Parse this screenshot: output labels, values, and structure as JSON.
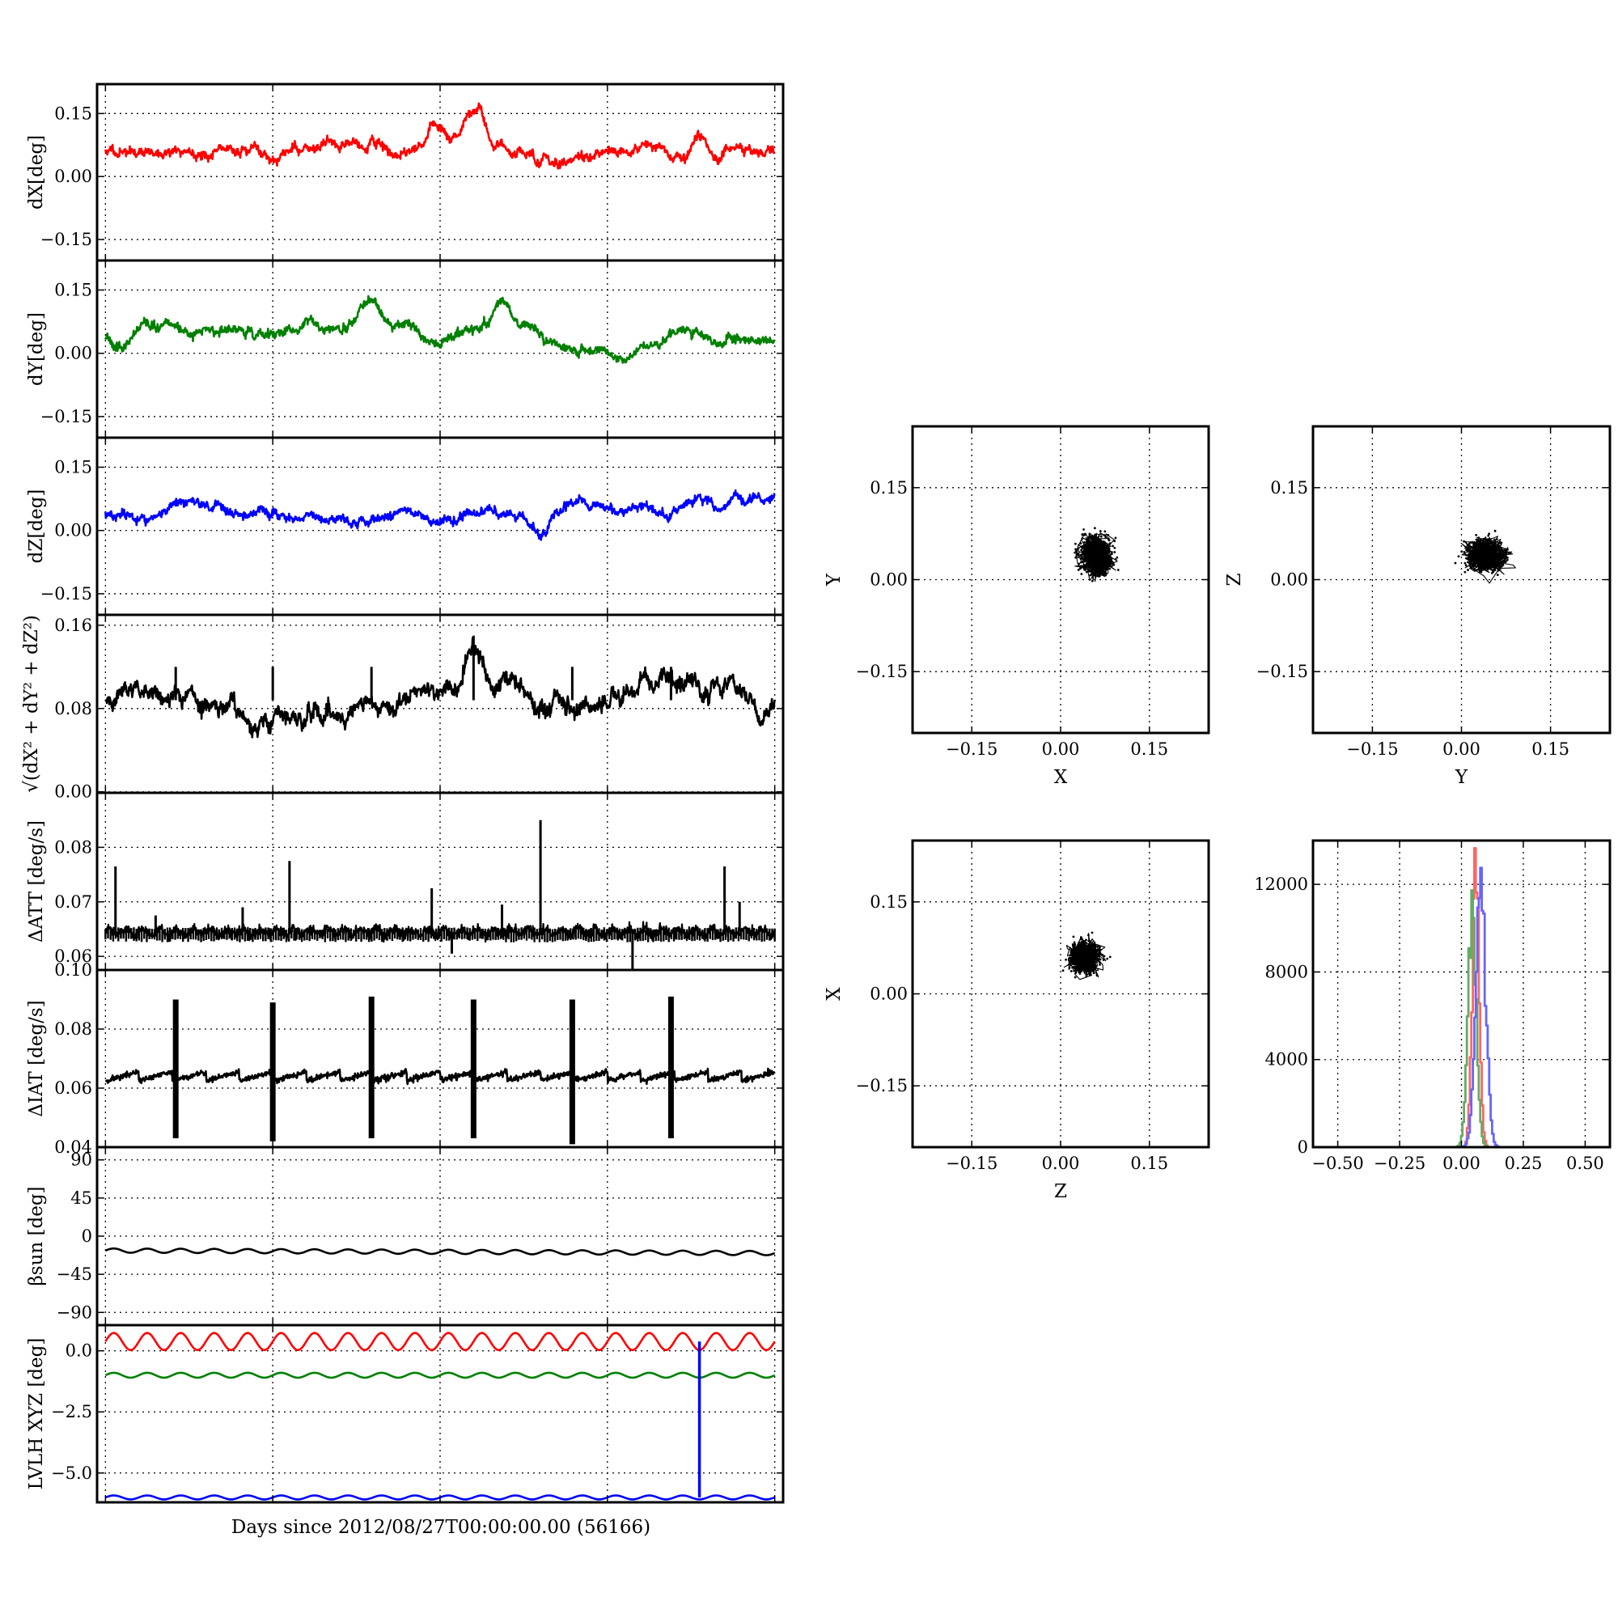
{
  "figure": {
    "shared_xlabel": "Days since 2012/08/27T00:00:00.00 (56166)"
  },
  "chart_data": [
    {
      "id": "dx",
      "type": "line",
      "ylabel": "dX[deg]",
      "ylim": [
        -0.2,
        0.22
      ],
      "yticks": [
        -0.15,
        0.0,
        0.15
      ],
      "ytick_labels": [
        "−0.15",
        "0.00",
        "0.15"
      ],
      "xlim": [
        -0.05,
        4.05
      ],
      "xticks": [
        0,
        1,
        2,
        3,
        4
      ],
      "grid": true,
      "series": [
        {
          "color": "#ff0000",
          "kind": "noise",
          "base": 0.06,
          "amp": 0.018,
          "noise": 0.008,
          "seed": 11,
          "bumps": [
            [
              2.2,
              0.07
            ],
            [
              1.98,
              0.03
            ],
            [
              3.55,
              0.02
            ]
          ]
        }
      ]
    },
    {
      "id": "dy",
      "type": "line",
      "ylabel": "dY[deg]",
      "ylim": [
        -0.2,
        0.22
      ],
      "yticks": [
        -0.15,
        0.0,
        0.15
      ],
      "ytick_labels": [
        "−0.15",
        "0.00",
        "0.15"
      ],
      "xlim": [
        -0.05,
        4.05
      ],
      "xticks": [
        0,
        1,
        2,
        3,
        4
      ],
      "grid": true,
      "series": [
        {
          "color": "#008000",
          "kind": "noise",
          "base": 0.04,
          "amp": 0.016,
          "noise": 0.008,
          "seed": 23,
          "bumps": [
            [
              2.37,
              0.06
            ],
            [
              1.59,
              0.05
            ],
            [
              3.09,
              -0.03
            ]
          ]
        }
      ]
    },
    {
      "id": "dz",
      "type": "line",
      "ylabel": "dZ[deg]",
      "ylim": [
        -0.2,
        0.22
      ],
      "yticks": [
        -0.15,
        0.0,
        0.15
      ],
      "ytick_labels": [
        "−0.15",
        "0.00",
        "0.15"
      ],
      "xlim": [
        -0.05,
        4.05
      ],
      "xticks": [
        0,
        1,
        2,
        3,
        4
      ],
      "grid": true,
      "series": [
        {
          "color": "#0000ff",
          "kind": "noise",
          "base": 0.04,
          "amp": 0.015,
          "noise": 0.008,
          "seed": 37,
          "bumps": [
            [
              2.6,
              -0.045
            ],
            [
              3.55,
              0.035
            ],
            [
              3.78,
              0.03
            ]
          ]
        }
      ]
    },
    {
      "id": "dr",
      "type": "line",
      "ylabel": "√(dX² + dY² + dZ²)",
      "ylim": [
        -0.001,
        0.17
      ],
      "yticks": [
        0.0,
        0.08,
        0.16
      ],
      "ytick_labels": [
        "0.00",
        "0.08",
        "0.16"
      ],
      "xlim": [
        -0.05,
        4.05
      ],
      "xticks": [
        0,
        1,
        2,
        3,
        4
      ],
      "grid": true,
      "series": [
        {
          "color": "#000000",
          "kind": "noise",
          "base": 0.088,
          "amp": 0.012,
          "noise": 0.006,
          "seed": 51,
          "bumps": [
            [
              2.2,
              0.04
            ],
            [
              2.6,
              -0.02
            ],
            [
              3.6,
              -0.02
            ]
          ],
          "spikes": [
            [
              0.42,
              0.12
            ],
            [
              1.0,
              0.12
            ],
            [
              1.59,
              0.12
            ],
            [
              2.2,
              0.15
            ],
            [
              2.79,
              0.12
            ],
            [
              3.38,
              0.12
            ]
          ]
        }
      ]
    },
    {
      "id": "datt",
      "type": "line",
      "ylabel": "ΔATT [deg/s]",
      "ylim": [
        0.0575,
        0.09
      ],
      "yticks": [
        0.06,
        0.07,
        0.08
      ],
      "ytick_labels": [
        "0.06",
        "0.07",
        "0.08"
      ],
      "xlim": [
        -0.05,
        4.05
      ],
      "xticks": [
        0,
        1,
        2,
        3,
        4
      ],
      "grid": true,
      "series": [
        {
          "color": "#000000",
          "kind": "band",
          "base": 0.0645,
          "amp": 0.0012,
          "seed": 61,
          "spikes": [
            [
              0.06,
              0.0765
            ],
            [
              0.3,
              0.0675
            ],
            [
              1.1,
              0.0775
            ],
            [
              1.95,
              0.0725
            ],
            [
              2.6,
              0.085
            ],
            [
              2.37,
              0.0695
            ],
            [
              3.7,
              0.0765
            ],
            [
              3.79,
              0.07
            ],
            [
              0.82,
              0.069
            ]
          ],
          "dips": [
            [
              3.15,
              0.0575
            ],
            [
              2.07,
              0.0605
            ]
          ]
        }
      ]
    },
    {
      "id": "diat",
      "type": "line",
      "ylabel": "ΔIAT [deg/s]",
      "ylim": [
        0.04,
        0.1
      ],
      "yticks": [
        0.04,
        0.06,
        0.08,
        0.1
      ],
      "ytick_labels": [
        "0.04",
        "0.06",
        "0.08",
        "0.10"
      ],
      "xlim": [
        -0.05,
        4.05
      ],
      "xticks": [
        0,
        1,
        2,
        3,
        4
      ],
      "grid": true,
      "series": [
        {
          "color": "#000000",
          "kind": "saw",
          "base": 0.064,
          "amp": 0.003,
          "period": 0.2,
          "seed": 71,
          "bars": [
            [
              0.42,
              0.043,
              0.09
            ],
            [
              1.0,
              0.042,
              0.089
            ],
            [
              1.59,
              0.043,
              0.091
            ],
            [
              2.2,
              0.043,
              0.09
            ],
            [
              2.79,
              0.041,
              0.09
            ],
            [
              3.38,
              0.043,
              0.091
            ]
          ]
        }
      ]
    },
    {
      "id": "beta",
      "type": "line",
      "ylabel": "βsun [deg]",
      "ylim": [
        -105,
        105
      ],
      "yticks": [
        -90,
        -45,
        0,
        45,
        90
      ],
      "ytick_labels": [
        "−90",
        "−45",
        "0",
        "45",
        "90"
      ],
      "xlim": [
        -0.05,
        4.05
      ],
      "xticks": [
        0,
        1,
        2,
        3,
        4
      ],
      "grid": true,
      "series": [
        {
          "color": "#000000",
          "kind": "sine",
          "base": -17,
          "amp": 2.5,
          "period": 0.2,
          "drift": -3
        }
      ]
    },
    {
      "id": "lvlh",
      "type": "line",
      "ylabel": "LVLH XYZ [deg]",
      "ylim": [
        -6.2,
        1.05
      ],
      "yticks": [
        -5.0,
        -2.5,
        0.0
      ],
      "ytick_labels": [
        "−5.0",
        "−2.5",
        "0.0"
      ],
      "xlim": [
        -0.05,
        4.05
      ],
      "xticks": [
        0,
        1,
        2,
        3,
        4
      ],
      "grid": true,
      "series": [
        {
          "color": "#ff0000",
          "kind": "sine",
          "base": 0.38,
          "amp": 0.35,
          "period": 0.2
        },
        {
          "color": "#008000",
          "kind": "sine",
          "base": -1.0,
          "amp": 0.1,
          "period": 0.2
        },
        {
          "color": "#0000ff",
          "kind": "sine",
          "base": -6.0,
          "amp": 0.08,
          "period": 0.2,
          "jump": [
            3.55,
            0.38
          ]
        }
      ]
    },
    {
      "id": "xy",
      "type": "scatter",
      "xlabel": "X",
      "ylabel": "Y",
      "xlim": [
        -0.25,
        0.25
      ],
      "ylim": [
        -0.25,
        0.25
      ],
      "ticks": [
        -0.15,
        0.0,
        0.15
      ],
      "tick_labels": [
        "−0.15",
        "0.00",
        "0.15"
      ],
      "grid": true,
      "cloud": {
        "cx": 0.06,
        "cy": 0.04,
        "sx": 0.012,
        "sy": 0.015,
        "color": "#000000",
        "seed": 101
      }
    },
    {
      "id": "yz",
      "type": "scatter",
      "xlabel": "Y",
      "ylabel": "Z",
      "xlim": [
        -0.25,
        0.25
      ],
      "ylim": [
        -0.25,
        0.25
      ],
      "ticks": [
        -0.15,
        0.0,
        0.15
      ],
      "tick_labels": [
        "−0.15",
        "0.00",
        "0.15"
      ],
      "grid": true,
      "cloud": {
        "cx": 0.04,
        "cy": 0.04,
        "sx": 0.015,
        "sy": 0.012,
        "color": "#000000",
        "seed": 202
      }
    },
    {
      "id": "zx",
      "type": "scatter",
      "xlabel": "Z",
      "ylabel": "X",
      "xlim": [
        -0.25,
        0.25
      ],
      "ylim": [
        -0.25,
        0.25
      ],
      "ticks": [
        -0.15,
        0.0,
        0.15
      ],
      "tick_labels": [
        "−0.15",
        "0.00",
        "0.15"
      ],
      "grid": true,
      "cloud": {
        "cx": 0.04,
        "cy": 0.06,
        "sx": 0.012,
        "sy": 0.012,
        "color": "#000000",
        "seed": 303
      }
    },
    {
      "id": "hist",
      "type": "line",
      "xlim": [
        -0.6,
        0.6
      ],
      "ylim": [
        0,
        14000
      ],
      "xticks": [
        -0.5,
        -0.25,
        0.0,
        0.25,
        0.5
      ],
      "xtick_labels": [
        "−0.50",
        "−0.25",
        "0.00",
        "0.25",
        "0.50"
      ],
      "yticks": [
        0,
        4000,
        8000,
        12000
      ],
      "ytick_labels": [
        "0",
        "4000",
        "8000",
        "12000"
      ],
      "grid": true,
      "series": [
        {
          "color": "#ff6666",
          "center": 0.055,
          "sigma": 0.014,
          "peak": 12400
        },
        {
          "color": "#66aa66",
          "center": 0.04,
          "sigma": 0.017,
          "peak": 10600
        },
        {
          "color": "#6666ff",
          "center": 0.075,
          "sigma": 0.02,
          "peak": 11800
        }
      ]
    }
  ]
}
